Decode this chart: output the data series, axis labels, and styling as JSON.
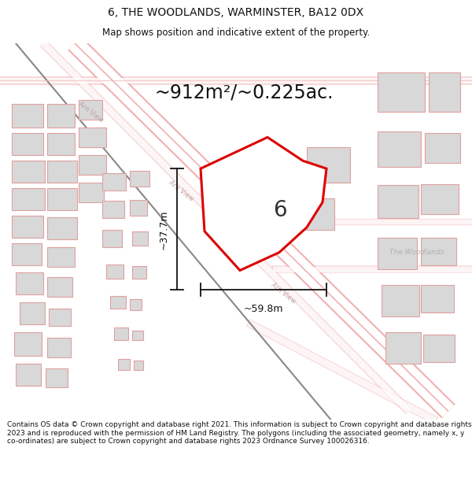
{
  "title": "6, THE WOODLANDS, WARMINSTER, BA12 0DX",
  "subtitle": "Map shows position and indicative extent of the property.",
  "area_text": "~912m²/~0.225ac.",
  "width_label": "~59.8m",
  "height_label": "~37.7m",
  "plot_number": "6",
  "footer": "Contains OS data © Crown copyright and database right 2021. This information is subject to Crown copyright and database rights 2023 and is reproduced with the permission of HM Land Registry. The polygons (including the associated geometry, namely x, y co-ordinates) are subject to Crown copyright and database rights 2023 Ordnance Survey 100026316.",
  "map_bg": "#ffffff",
  "plot_fill": "#ffffff",
  "plot_edge": "#dd0000",
  "road_outline": "#f0b0b0",
  "road_fill": "#ffffff",
  "rail_color": "#888888",
  "building_fill": "#d8d8d8",
  "building_edge": "#e0a0a0",
  "dim_color": "#111111",
  "text_color": "#111111",
  "area_color": "#111111",
  "label_color": "#c0a0a0",
  "footer_color": "#111111",
  "woodlands_color": "#b0b0b0",
  "arnview_color": "#c0a0a0",
  "title_fontsize": 10,
  "subtitle_fontsize": 8.5,
  "area_fontsize": 17,
  "plot_num_fontsize": 20,
  "footer_fontsize": 6.5
}
